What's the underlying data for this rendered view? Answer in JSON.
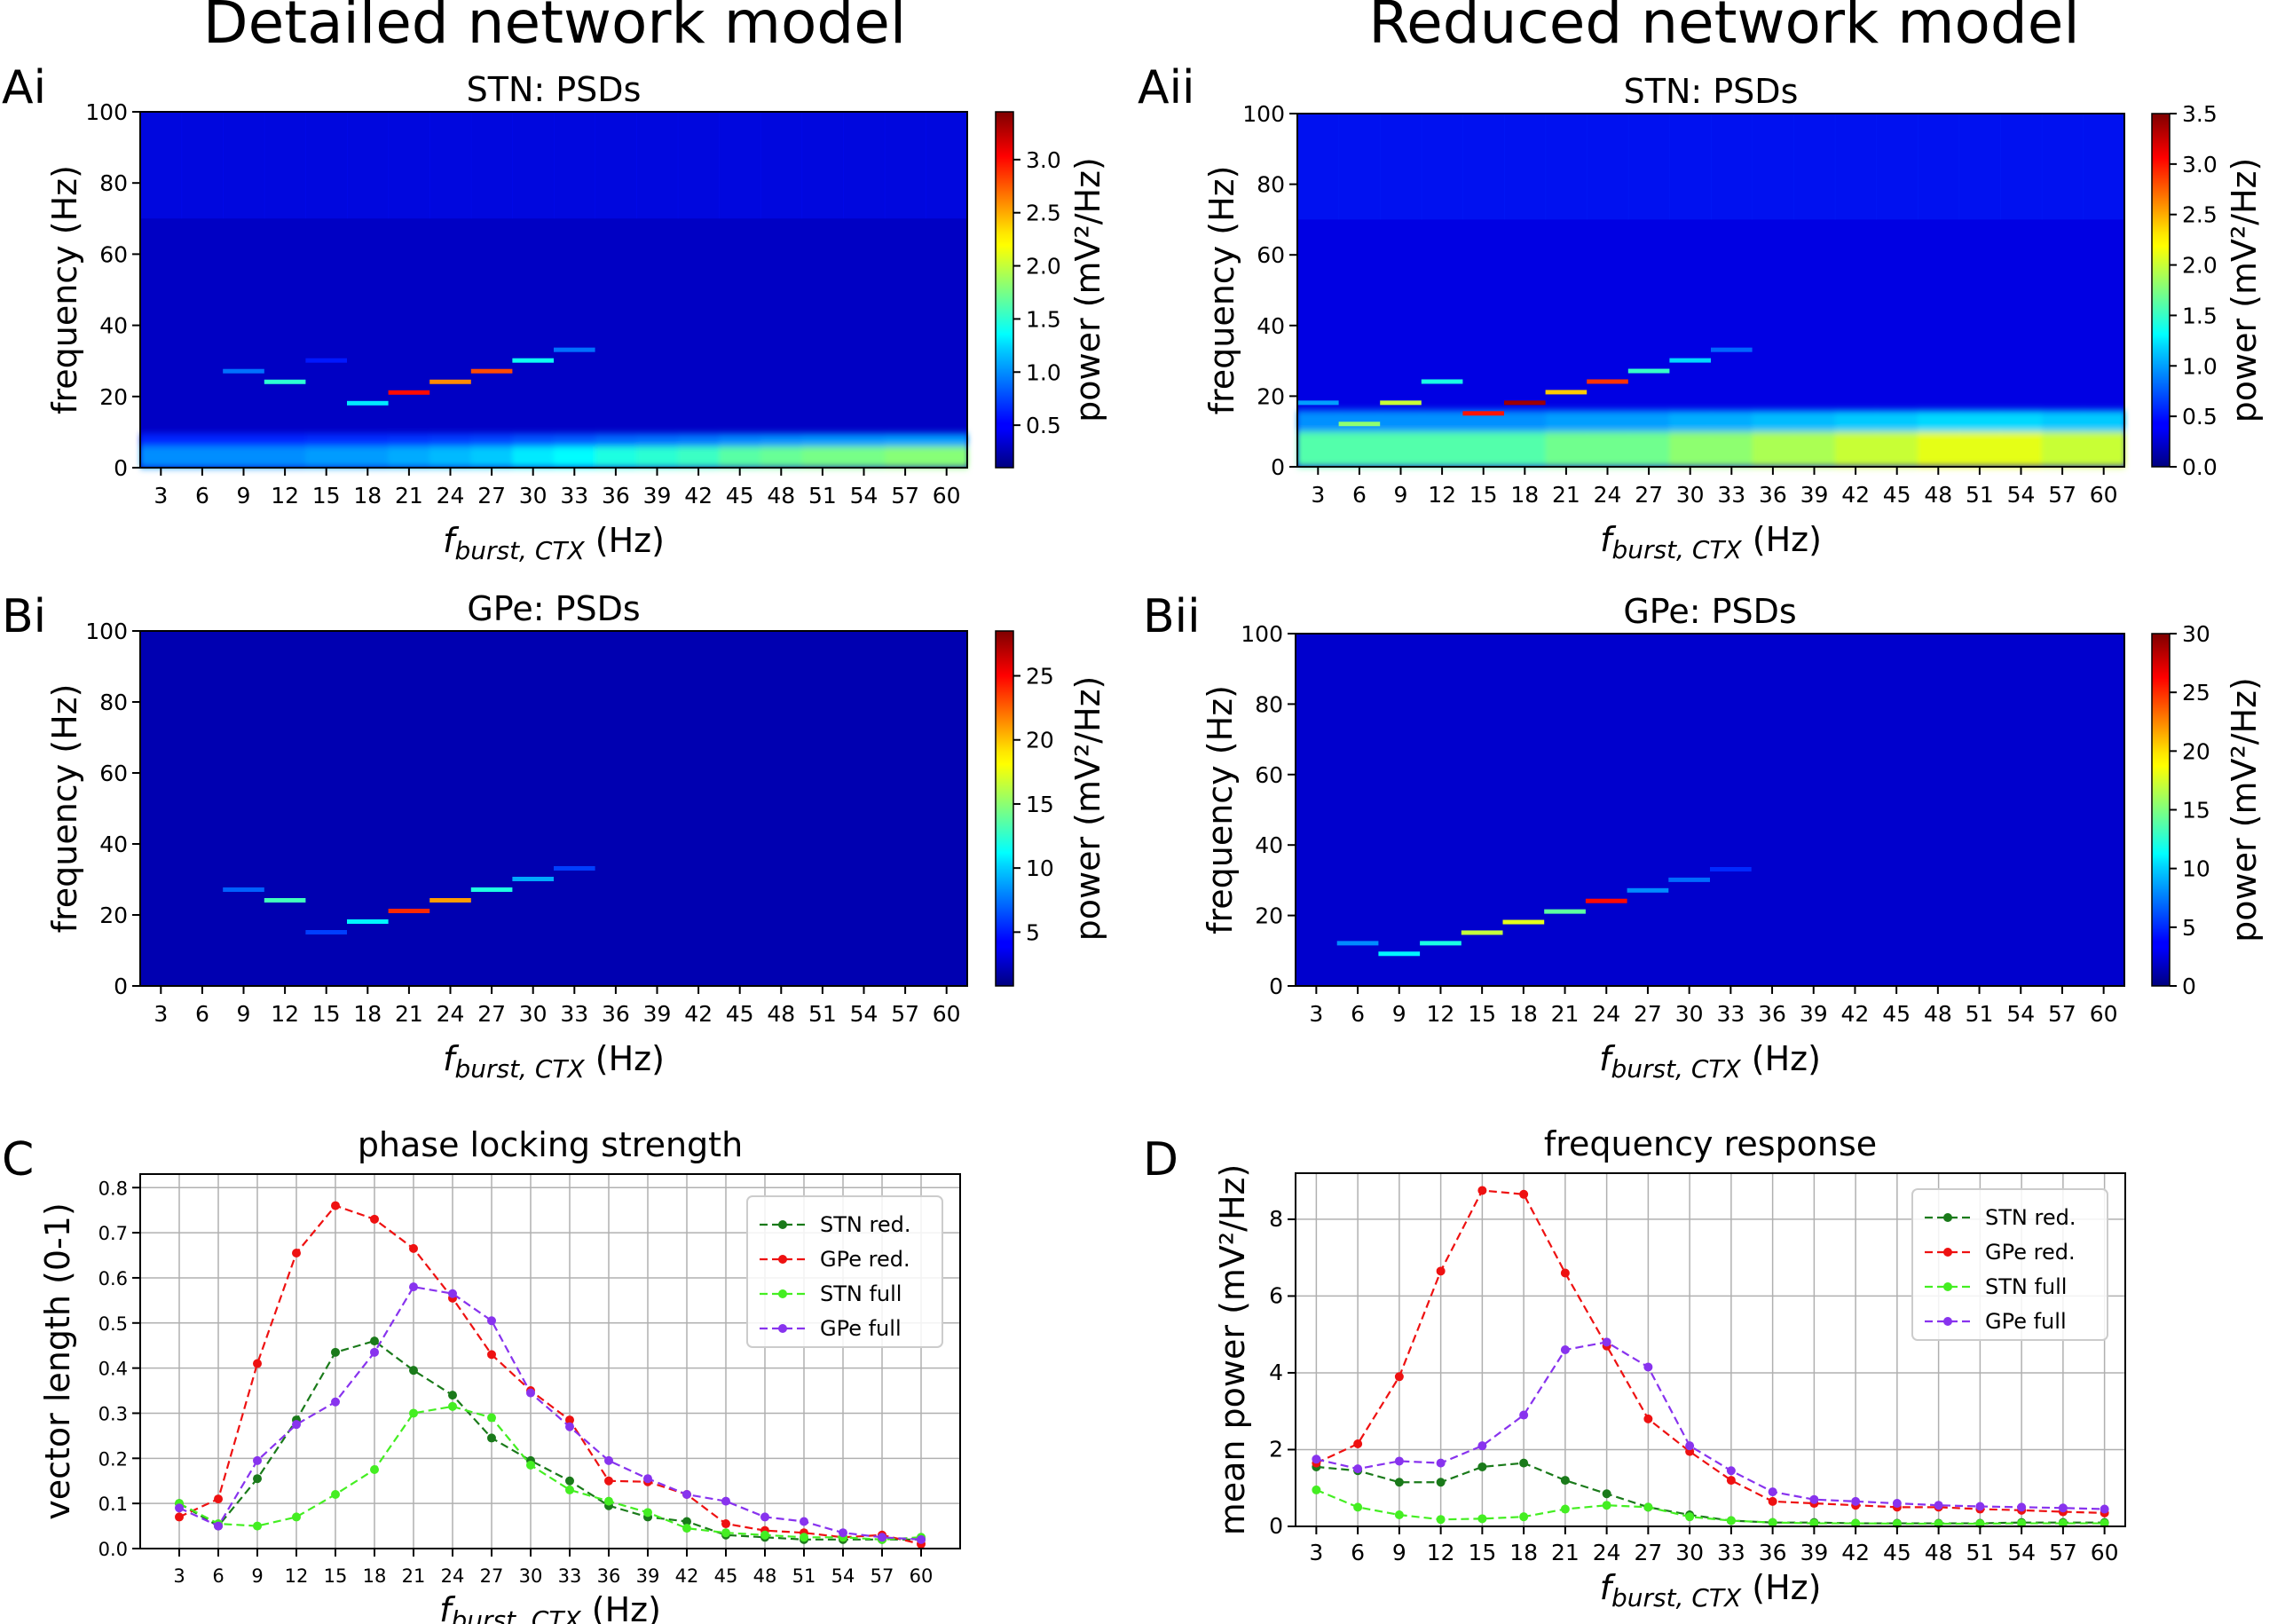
{
  "figure": {
    "col_titles": [
      "Detailed network model",
      "Reduced network model"
    ],
    "panel_letters": [
      "Ai",
      "Aii",
      "Bi",
      "Bii",
      "C",
      "D"
    ]
  },
  "colors": {
    "stn_red": "#1a7a1a",
    "gpe_red": "#ee1111",
    "stn_full": "#44ee22",
    "gpe_full": "#8833ee",
    "heat_background": "#00007f",
    "grid": "#b0b0b0"
  },
  "chart_data": [
    {
      "id": "Ai",
      "type": "heatmap",
      "title": "STN: PSDs",
      "xlabel": "f",
      "xlabel_sub": "burst, CTX",
      "xlabel_unit": "(Hz)",
      "ylabel": "frequency (Hz)",
      "x": [
        3,
        6,
        9,
        12,
        15,
        18,
        21,
        24,
        27,
        30,
        33,
        36,
        39,
        42,
        45,
        48,
        51,
        54,
        57,
        60
      ],
      "ylim": [
        0,
        100
      ],
      "yticks": [
        0,
        20,
        40,
        60,
        80,
        100
      ],
      "colorbar_label": "power (mV²/Hz)",
      "colorbar_ticks": [
        "0.5",
        "1.0",
        "1.5",
        "2.0",
        "2.5",
        "3.0"
      ],
      "vmin": 0.1,
      "vmax": 3.45,
      "background_power": 0.3,
      "low_band": {
        "f_max": 6,
        "power": [
          1.0,
          1.0,
          1.0,
          1.0,
          1.05,
          1.05,
          1.1,
          1.15,
          1.2,
          1.3,
          1.35,
          1.45,
          1.5,
          1.55,
          1.65,
          1.7,
          1.75,
          1.75,
          1.8,
          1.8
        ]
      },
      "peaks": [
        {
          "x": 9,
          "f": 27,
          "power": 0.9
        },
        {
          "x": 12,
          "f": 24,
          "power": 1.5
        },
        {
          "x": 15,
          "f": 30,
          "power": 0.6
        },
        {
          "x": 18,
          "f": 18,
          "power": 1.3
        },
        {
          "x": 21,
          "f": 21,
          "power": 3.0
        },
        {
          "x": 24,
          "f": 24,
          "power": 2.6
        },
        {
          "x": 27,
          "f": 27,
          "power": 2.8
        },
        {
          "x": 30,
          "f": 30,
          "power": 1.4
        },
        {
          "x": 33,
          "f": 33,
          "power": 0.9
        }
      ]
    },
    {
      "id": "Aii",
      "type": "heatmap",
      "title": "STN: PSDs",
      "xlabel": "f",
      "xlabel_sub": "burst, CTX",
      "xlabel_unit": "(Hz)",
      "ylabel": "frequency (Hz)",
      "x": [
        3,
        6,
        9,
        12,
        15,
        18,
        21,
        24,
        27,
        30,
        33,
        36,
        39,
        42,
        45,
        48,
        51,
        54,
        57,
        60
      ],
      "ylim": [
        0,
        100
      ],
      "yticks": [
        0,
        20,
        40,
        60,
        80,
        100
      ],
      "colorbar_label": "power (mV²/Hz)",
      "colorbar_ticks": [
        "0.0",
        "0.5",
        "1.0",
        "1.5",
        "2.0",
        "2.5",
        "3.0",
        "3.5"
      ],
      "vmin": 0.0,
      "vmax": 3.5,
      "background_power": 0.3,
      "low_band": {
        "f_max": 10,
        "power": [
          1.6,
          1.6,
          1.6,
          1.6,
          1.6,
          1.6,
          1.7,
          1.7,
          1.7,
          1.8,
          1.8,
          1.9,
          1.9,
          2.0,
          2.0,
          2.1,
          2.1,
          2.1,
          2.0,
          2.0
        ]
      },
      "peaks": [
        {
          "x": 3,
          "f": 18,
          "power": 1.0
        },
        {
          "x": 6,
          "f": 12,
          "power": 1.8
        },
        {
          "x": 9,
          "f": 18,
          "power": 2.0
        },
        {
          "x": 12,
          "f": 24,
          "power": 1.4
        },
        {
          "x": 15,
          "f": 15,
          "power": 3.0
        },
        {
          "x": 18,
          "f": 18,
          "power": 3.4
        },
        {
          "x": 21,
          "f": 21,
          "power": 2.4
        },
        {
          "x": 24,
          "f": 24,
          "power": 2.9
        },
        {
          "x": 27,
          "f": 27,
          "power": 1.5
        },
        {
          "x": 30,
          "f": 30,
          "power": 1.2
        },
        {
          "x": 33,
          "f": 33,
          "power": 0.8
        }
      ]
    },
    {
      "id": "Bi",
      "type": "heatmap",
      "title": "GPe: PSDs",
      "xlabel": "f",
      "xlabel_sub": "burst, CTX",
      "xlabel_unit": "(Hz)",
      "ylabel": "frequency (Hz)",
      "x": [
        3,
        6,
        9,
        12,
        15,
        18,
        21,
        24,
        27,
        30,
        33,
        36,
        39,
        42,
        45,
        48,
        51,
        54,
        57,
        60
      ],
      "ylim": [
        0,
        100
      ],
      "yticks": [
        0,
        20,
        40,
        60,
        80,
        100
      ],
      "colorbar_label": "power (mV²/Hz)",
      "colorbar_ticks": [
        "5",
        "10",
        "15",
        "20",
        "25"
      ],
      "vmin": 0.8,
      "vmax": 28.5,
      "background_power": 2.0,
      "low_band": {
        "f_max": 0,
        "power": []
      },
      "peaks": [
        {
          "x": 9,
          "f": 27,
          "power": 7
        },
        {
          "x": 12,
          "f": 24,
          "power": 13
        },
        {
          "x": 15,
          "f": 15,
          "power": 6
        },
        {
          "x": 18,
          "f": 18,
          "power": 11
        },
        {
          "x": 21,
          "f": 21,
          "power": 24
        },
        {
          "x": 24,
          "f": 24,
          "power": 21
        },
        {
          "x": 27,
          "f": 27,
          "power": 12
        },
        {
          "x": 30,
          "f": 30,
          "power": 9
        },
        {
          "x": 33,
          "f": 33,
          "power": 6
        }
      ]
    },
    {
      "id": "Bii",
      "type": "heatmap",
      "title": "GPe: PSDs",
      "xlabel": "f",
      "xlabel_sub": "burst, CTX",
      "xlabel_unit": "(Hz)",
      "ylabel": "frequency (Hz)",
      "x": [
        3,
        6,
        9,
        12,
        15,
        18,
        21,
        24,
        27,
        30,
        33,
        36,
        39,
        42,
        45,
        48,
        51,
        54,
        57,
        60
      ],
      "ylim": [
        0,
        100
      ],
      "yticks": [
        0,
        20,
        40,
        60,
        80,
        100
      ],
      "colorbar_label": "power (mV²/Hz)",
      "colorbar_ticks": [
        "0",
        "5",
        "10",
        "15",
        "20",
        "25",
        "30"
      ],
      "vmin": 0,
      "vmax": 30,
      "background_power": 2.0,
      "low_band": {
        "f_max": 0,
        "power": []
      },
      "peaks": [
        {
          "x": 6,
          "f": 12,
          "power": 8
        },
        {
          "x": 9,
          "f": 9,
          "power": 11
        },
        {
          "x": 12,
          "f": 12,
          "power": 12
        },
        {
          "x": 15,
          "f": 15,
          "power": 17
        },
        {
          "x": 18,
          "f": 18,
          "power": 18
        },
        {
          "x": 21,
          "f": 21,
          "power": 14
        },
        {
          "x": 24,
          "f": 24,
          "power": 26
        },
        {
          "x": 27,
          "f": 27,
          "power": 8
        },
        {
          "x": 30,
          "f": 30,
          "power": 7
        },
        {
          "x": 33,
          "f": 33,
          "power": 5
        }
      ]
    },
    {
      "id": "C",
      "type": "line",
      "title": "phase locking strength",
      "xlabel": "f",
      "xlabel_sub": "burst, CTX",
      "xlabel_unit": "(Hz)",
      "ylabel": "vector length (0-1)",
      "x": [
        3,
        6,
        9,
        12,
        15,
        18,
        21,
        24,
        27,
        30,
        33,
        36,
        39,
        42,
        45,
        48,
        51,
        54,
        57,
        60
      ],
      "ylim": [
        0,
        0.83
      ],
      "yticks": [
        "0.0",
        "0.1",
        "0.2",
        "0.3",
        "0.4",
        "0.5",
        "0.6",
        "0.7",
        "0.8"
      ],
      "xlim": [
        0,
        63
      ],
      "grid": true,
      "legend_position": "top-right",
      "series": [
        {
          "name": "STN red.",
          "color_key": "stn_red",
          "values": [
            0.1,
            0.05,
            0.155,
            0.285,
            0.435,
            0.46,
            0.395,
            0.34,
            0.245,
            0.195,
            0.15,
            0.095,
            0.07,
            0.06,
            0.03,
            0.025,
            0.02,
            0.02,
            0.02,
            0.02
          ]
        },
        {
          "name": "GPe red.",
          "color_key": "gpe_red",
          "values": [
            0.07,
            0.11,
            0.41,
            0.655,
            0.76,
            0.73,
            0.665,
            0.555,
            0.43,
            0.35,
            0.285,
            0.15,
            0.148,
            0.12,
            0.055,
            0.04,
            0.035,
            0.025,
            0.03,
            0.01
          ]
        },
        {
          "name": "STN full",
          "color_key": "stn_full",
          "values": [
            0.1,
            0.055,
            0.05,
            0.07,
            0.12,
            0.175,
            0.3,
            0.315,
            0.29,
            0.185,
            0.13,
            0.105,
            0.08,
            0.045,
            0.035,
            0.03,
            0.025,
            0.025,
            0.02,
            0.025
          ]
        },
        {
          "name": "GPe full",
          "color_key": "gpe_full",
          "values": [
            0.09,
            0.05,
            0.195,
            0.275,
            0.325,
            0.435,
            0.58,
            0.565,
            0.505,
            0.345,
            0.27,
            0.195,
            0.155,
            0.12,
            0.105,
            0.07,
            0.06,
            0.035,
            0.025,
            0.02
          ]
        }
      ]
    },
    {
      "id": "D",
      "type": "line",
      "title": "frequency response",
      "xlabel": "f",
      "xlabel_sub": "burst, CTX",
      "xlabel_unit": "(Hz)",
      "ylabel": "mean power (mV²/Hz)",
      "x": [
        3,
        6,
        9,
        12,
        15,
        18,
        21,
        24,
        27,
        30,
        33,
        36,
        39,
        42,
        45,
        48,
        51,
        54,
        57,
        60
      ],
      "ylim": [
        0,
        9.2
      ],
      "yticks": [
        "0",
        "2",
        "4",
        "6",
        "8"
      ],
      "xlim": [
        1.5,
        61.5
      ],
      "grid": true,
      "legend_position": "top-right",
      "series": [
        {
          "name": "STN red.",
          "color_key": "stn_red",
          "values": [
            1.55,
            1.45,
            1.15,
            1.15,
            1.55,
            1.65,
            1.2,
            0.85,
            0.5,
            0.3,
            0.15,
            0.1,
            0.1,
            0.08,
            0.08,
            0.08,
            0.08,
            0.1,
            0.1,
            0.1
          ]
        },
        {
          "name": "GPe red.",
          "color_key": "gpe_red",
          "values": [
            1.65,
            2.15,
            3.9,
            6.65,
            8.75,
            8.65,
            6.6,
            4.7,
            2.8,
            1.95,
            1.2,
            0.65,
            0.6,
            0.55,
            0.5,
            0.5,
            0.45,
            0.42,
            0.38,
            0.35
          ]
        },
        {
          "name": "STN full",
          "color_key": "stn_full",
          "values": [
            0.95,
            0.5,
            0.3,
            0.18,
            0.2,
            0.25,
            0.45,
            0.55,
            0.5,
            0.25,
            0.15,
            0.1,
            0.08,
            0.08,
            0.07,
            0.07,
            0.07,
            0.08,
            0.08,
            0.08
          ]
        },
        {
          "name": "GPe full",
          "color_key": "gpe_full",
          "values": [
            1.75,
            1.5,
            1.7,
            1.65,
            2.1,
            2.9,
            4.6,
            4.8,
            4.15,
            2.1,
            1.45,
            0.9,
            0.7,
            0.65,
            0.6,
            0.55,
            0.52,
            0.5,
            0.48,
            0.45
          ]
        }
      ]
    }
  ]
}
